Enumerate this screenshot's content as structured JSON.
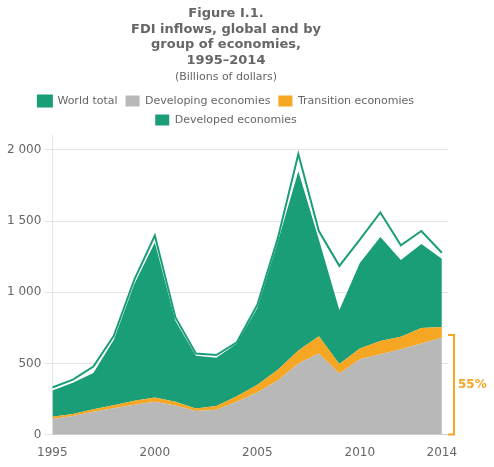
{
  "chart_data": {
    "type": "area",
    "title": [
      "Figure I.1.",
      "FDI inflows, global and by",
      "group of economies,",
      "1995–2014"
    ],
    "subtitle": "(Billions of dollars)",
    "x": [
      1995,
      1996,
      1997,
      1998,
      1999,
      2000,
      2001,
      2002,
      2003,
      2004,
      2005,
      2006,
      2007,
      2008,
      2009,
      2010,
      2011,
      2012,
      2013,
      2014
    ],
    "series": [
      {
        "name": "Developing economies",
        "color": "#b8b8b8",
        "values": [
          110,
          130,
          160,
          185,
          210,
          230,
          205,
          165,
          175,
          230,
          295,
          380,
          500,
          570,
          430,
          530,
          565,
          600,
          640,
          680
        ]
      },
      {
        "name": "Transition economies",
        "color": "#f5a623",
        "values": [
          15,
          14,
          18,
          22,
          28,
          30,
          25,
          18,
          25,
          40,
          55,
          75,
          90,
          120,
          65,
          75,
          92,
          87,
          108,
          75
        ]
      },
      {
        "name": "Developed economies",
        "color": "#1a9e78",
        "values": [
          185,
          220,
          255,
          460,
          820,
          1090,
          570,
          370,
          340,
          370,
          540,
          900,
          1260,
          680,
          380,
          600,
          730,
          540,
          590,
          480
        ]
      },
      {
        "name": "World total",
        "type": "line",
        "color": "#1a9e78",
        "values": [
          331,
          386,
          478,
          694,
          1088,
          1398,
          825,
          569,
          559,
          648,
          912,
          1380,
          1970,
          1430,
          1185,
          1370,
          1560,
          1330,
          1430,
          1277
        ]
      }
    ],
    "stacked": true,
    "xlim": [
      1995,
      2014.3
    ],
    "xticks": [
      1995,
      2000,
      2005,
      2010,
      2014
    ],
    "ylim": [
      0,
      2100
    ],
    "yticks": [
      0,
      500,
      {
        "value": 1000,
        "label": "1 000"
      },
      {
        "value": 1500,
        "label": "1 500"
      },
      {
        "value": 2000,
        "label": "2 000"
      }
    ],
    "grid": true,
    "legend": "top",
    "annotations": [
      {
        "text": "55%",
        "y": [
          0,
          700
        ],
        "color": "#f5a623"
      }
    ]
  }
}
